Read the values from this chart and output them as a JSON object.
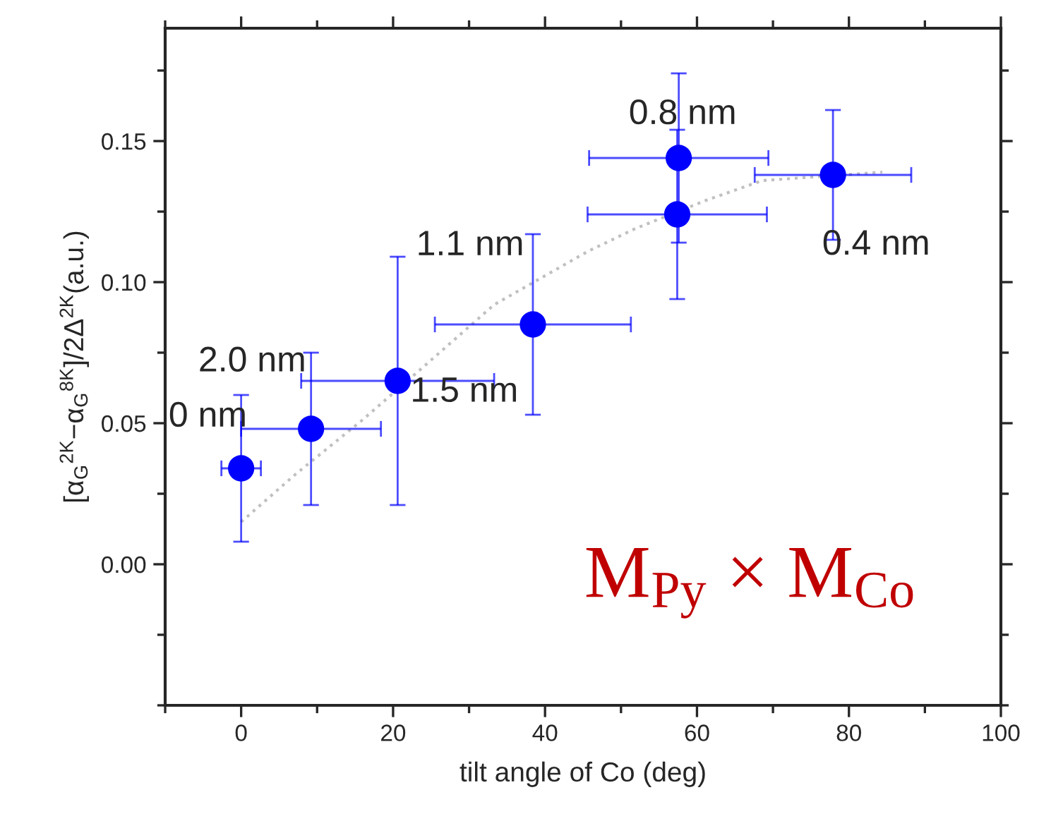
{
  "chart_data": {
    "type": "scatter",
    "xlabel": "tilt angle of Co (deg)",
    "ylabel": "[α$_{G}$$^{2K}$−α$_{G}$$^{8K}$]/2Δ$^{2K}$(a.u.)",
    "xlim": [
      -10,
      100
    ],
    "xticks": [
      0,
      20,
      40,
      60,
      80,
      100
    ],
    "ylim": [
      -0.05,
      0.19
    ],
    "yticks": [
      {
        "value": 0,
        "label": "0.00"
      },
      {
        "value": 0.05,
        "label": "0.05"
      },
      {
        "value": 0.1,
        "label": "0.10"
      },
      {
        "value": 0.15,
        "label": "0.15"
      }
    ],
    "grid": false,
    "legend": false,
    "marker": "circle",
    "series": [
      {
        "type": "line",
        "color": "#c0c0c0",
        "line_style": "dotted",
        "marker": "none",
        "x": [
          0,
          7.2,
          15.9,
          24,
          33.3,
          45.7,
          51.9,
          61.2,
          68.6,
          84.4
        ],
        "values": [
          0.015,
          0.032,
          0.051,
          0.07,
          0.092,
          0.111,
          0.119,
          0.129,
          0.136,
          0.139
        ]
      },
      {
        "color": "#0000ff",
        "x": [
          0,
          9.2,
          20.6,
          38.4,
          57.6,
          57.4,
          77.9
        ],
        "values": [
          0.034,
          0.048,
          0.065,
          0.085,
          0.144,
          0.124,
          0.138
        ],
        "errors": [
          0.026,
          0.027,
          0.044,
          0.032,
          0.03,
          0.03,
          0.023
        ],
        "xerrors": [
          2.6,
          9.2,
          12.7,
          12.9,
          11.8,
          11.8,
          10.3
        ]
      }
    ],
    "annotations": [
      {
        "text": "0 nm",
        "x": 0,
        "y": 0.034
      },
      {
        "text": "2.0 nm",
        "x": 9.2,
        "y": 0.048
      },
      {
        "text": "1.5 nm",
        "x": 20.6,
        "y": 0.065
      },
      {
        "text": "1.1 nm",
        "x": 38.4,
        "y": 0.085
      },
      {
        "text": "0.8 nm",
        "x": 57.6,
        "y": 0.144
      },
      {
        "text": "0.4 nm",
        "x": 77.9,
        "y": 0.138
      },
      "M$_{Py}$ × M$_{Co}$"
    ]
  }
}
